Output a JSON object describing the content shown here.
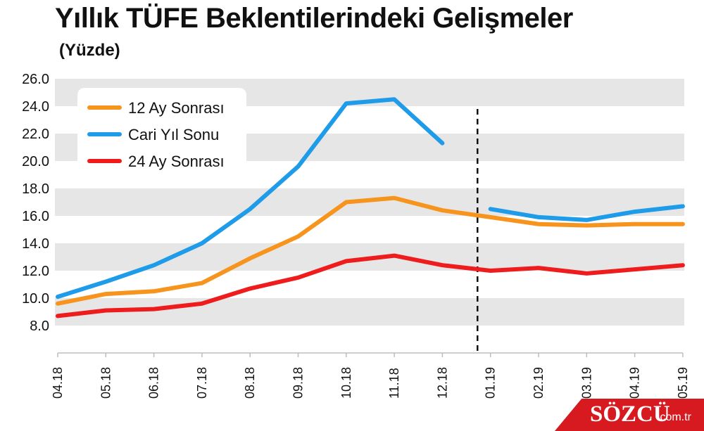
{
  "chart_data": {
    "type": "line",
    "title": "Yıllık TÜFE Beklentilerindeki Gelişmeler",
    "subtitle": "(Yüzde)",
    "categories": [
      "04.18",
      "05.18",
      "06.18",
      "07.18",
      "08.18",
      "09.18",
      "10.18",
      "11.18",
      "12.18",
      "01.19",
      "02.19",
      "03.19",
      "04.19",
      "05.19"
    ],
    "y_ticks": [
      "8.0",
      "10.0",
      "12.0",
      "14.0",
      "16.0",
      "18.0",
      "20.0",
      "22.0",
      "24.0",
      "26.0"
    ],
    "ylim": [
      6,
      26
    ],
    "grid": "alternating horizontal bands",
    "legend_position": "top-left",
    "divider_between": [
      "12.18",
      "01.19"
    ],
    "series": [
      {
        "name": "12 Ay Sonrası",
        "color": "#f7941d",
        "values": [
          9.6,
          10.3,
          10.5,
          11.1,
          12.9,
          14.5,
          17.0,
          17.3,
          16.4,
          15.9,
          15.4,
          15.3,
          15.4,
          15.4
        ]
      },
      {
        "name": "Cari Yıl Sonu",
        "color": "#1e9be9",
        "values": [
          10.1,
          11.2,
          12.4,
          14.0,
          16.5,
          19.6,
          24.2,
          24.5,
          21.3,
          16.5,
          15.9,
          15.7,
          16.3,
          16.7
        ]
      },
      {
        "name": "24 Ay Sonrası",
        "color": "#ee1c1c",
        "values": [
          8.7,
          9.1,
          9.2,
          9.6,
          10.7,
          11.5,
          12.7,
          13.1,
          12.4,
          12.0,
          12.2,
          11.8,
          12.1,
          12.4
        ]
      }
    ]
  },
  "logo": {
    "name": "SÖZCÜ",
    "tld": ".com.tr"
  }
}
